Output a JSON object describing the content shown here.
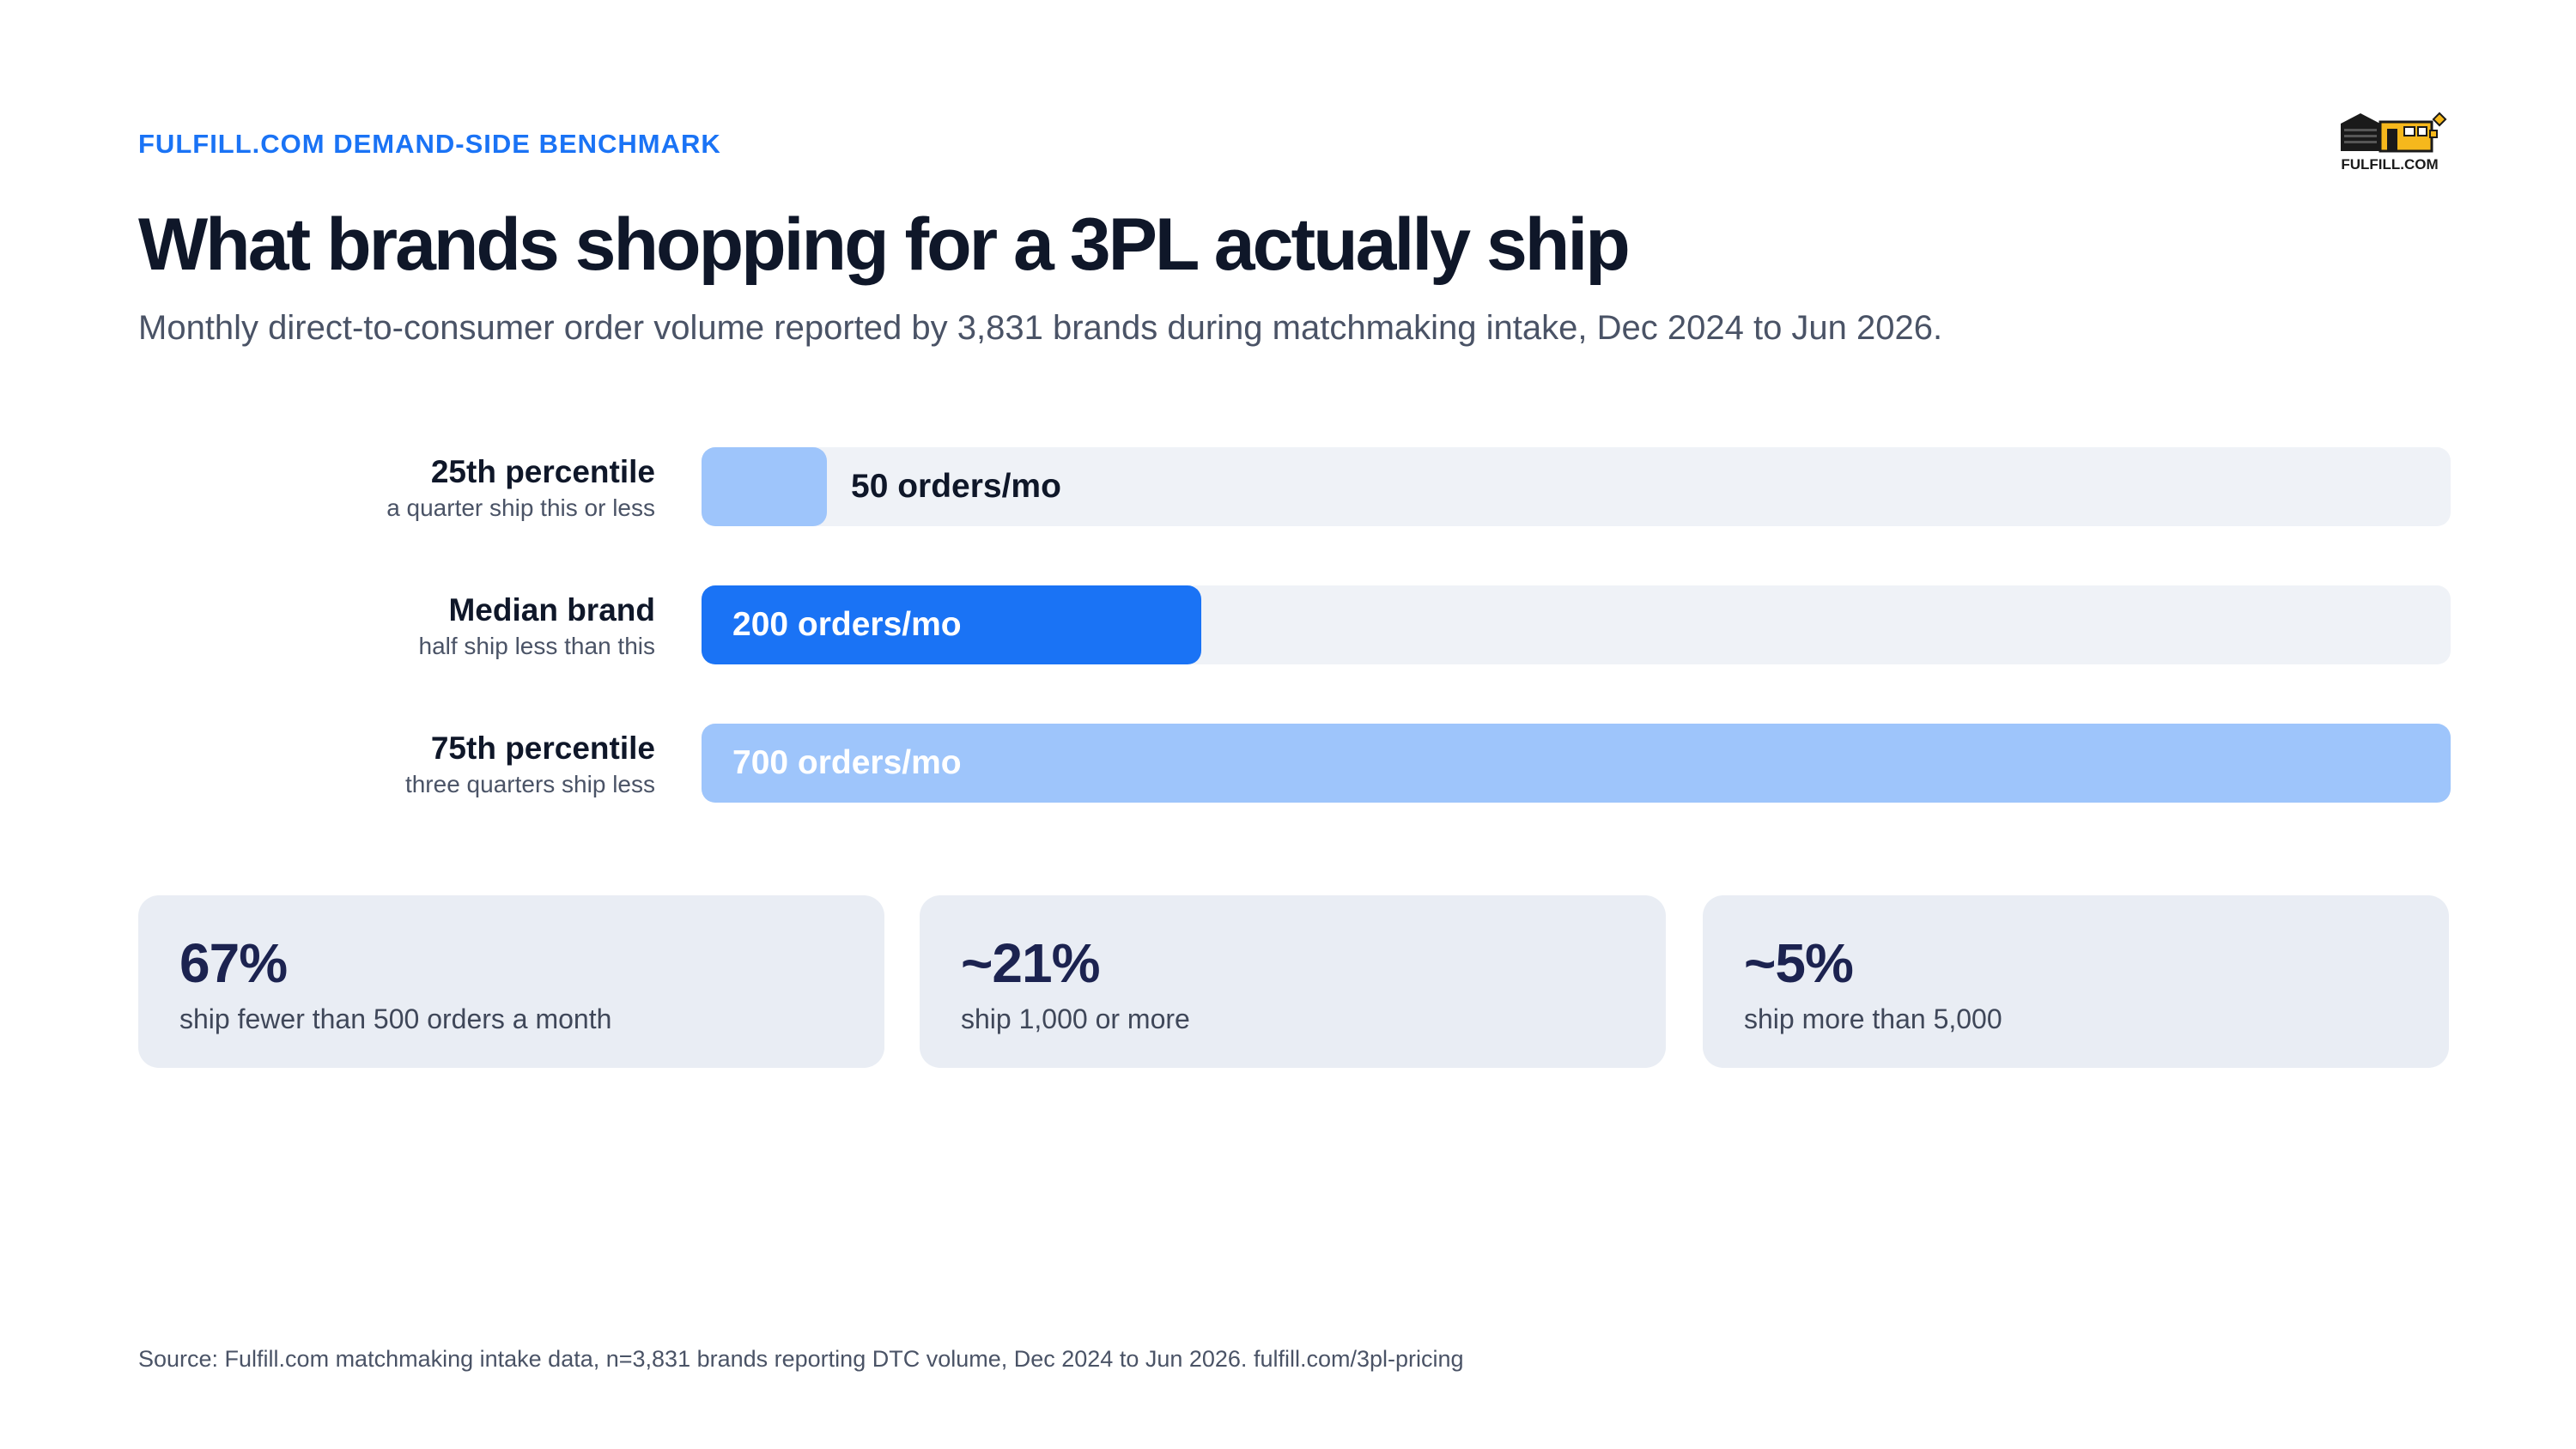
{
  "header": {
    "kicker": "FULFILL.COM DEMAND-SIDE BENCHMARK",
    "logo_text": "FULFILL.COM",
    "logo_icon": "warehouse-icon"
  },
  "title": "What brands shopping for a 3PL actually ship",
  "subtitle": "Monthly direct-to-consumer order volume reported by 3,831 brands during matchmaking intake, Dec 2024 to Jun 2026.",
  "chart_data": {
    "type": "bar",
    "orientation": "horizontal",
    "title": "What brands shopping for a 3PL actually ship",
    "subtitle": "Monthly direct-to-consumer order volume reported by 3,831 brands during matchmaking intake, Dec 2024 to Jun 2026.",
    "unit": "orders/mo",
    "xlim": [
      0,
      700
    ],
    "grid": false,
    "categories": [
      "25th percentile",
      "Median brand",
      "75th percentile"
    ],
    "descriptions": [
      "a quarter ship this or less",
      "half ship less than this",
      "three quarters ship less"
    ],
    "values": [
      50,
      200,
      700
    ],
    "value_labels": [
      "50 orders/mo",
      "200 orders/mo",
      "700 orders/mo"
    ],
    "colors": [
      "#9ec5fb",
      "#1a73f5",
      "#9ec5fb"
    ],
    "label_colors": [
      "#0f1729",
      "#ffffff",
      "#ffffff"
    ]
  },
  "stats": [
    {
      "value": "67%",
      "caption": "ship fewer than 500 orders a month"
    },
    {
      "value": "~21%",
      "caption": "ship 1,000 or more"
    },
    {
      "value": "~5%",
      "caption": "ship more than 5,000"
    }
  ],
  "source": "Source: Fulfill.com matchmaking intake data, n=3,831 brands reporting DTC volume, Dec 2024 to Jun 2026. fulfill.com/3pl-pricing",
  "colors": {
    "accent": "#1a73f5",
    "accent_light": "#9ec5fb",
    "track": "#eff2f7",
    "card": "#e9edf4",
    "logo_yellow": "#f6b81c"
  }
}
